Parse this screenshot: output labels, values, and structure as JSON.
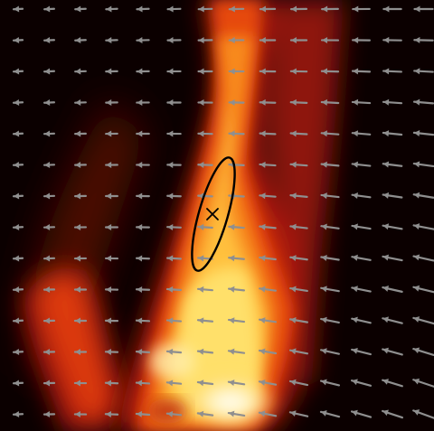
{
  "figure": {
    "kind": "flow-field-over-heat-map",
    "colors": {
      "background": "#0b0000",
      "plume_dark": "#7a0d06",
      "plume_red": "#c81d0a",
      "plume_orange": "#ee5a12",
      "plume_yellow": "#ffcc4a",
      "plume_white": "#fff6d2",
      "arrow": "#8f8f8f",
      "ellipse": "#000000",
      "marker": "#000000"
    },
    "icons": {
      "center_marker": "x-cross-icon",
      "outline": "ellipse-outline",
      "vectors": "arrow-icon"
    }
  }
}
